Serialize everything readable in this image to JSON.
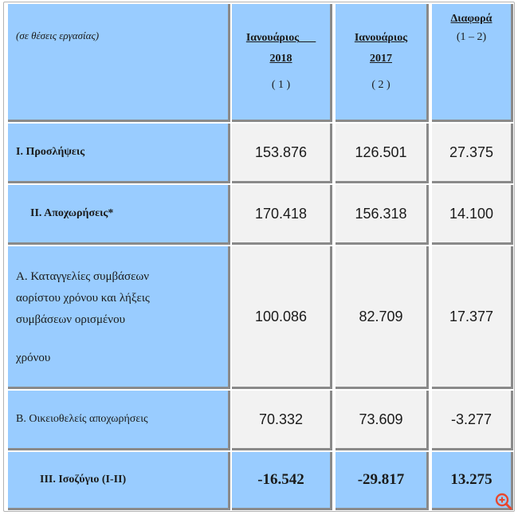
{
  "header": {
    "label": "(σε θέσεις εργασίας)",
    "col1": {
      "title": "Ιανουάριος___",
      "year": "2018",
      "num": "( 1 )"
    },
    "col2": {
      "title": "Ιανουάριος",
      "year": "2017",
      "num": "( 2 )"
    },
    "col3": {
      "title": "Διαφορά",
      "num": "(1 – 2)"
    }
  },
  "rows": [
    {
      "label": "Ι. Προσλήψεις",
      "v1": "153.876",
      "v2": "126.501",
      "v3": "27.375"
    },
    {
      "label": "ΙΙ. Αποχωρήσεις*",
      "v1": "170.418",
      "v2": "156.318",
      "v3": "14.100"
    },
    {
      "label_lines": [
        "Α. Καταγγελίες συμβάσεων",
        "αορίστου χρόνου  και λήξεις",
        "συμβάσεων ορισμένου",
        "χρόνου"
      ],
      "v1": "100.086",
      "v2": "82.709",
      "v3": "17.377"
    },
    {
      "label": "Β. Οικειοθελείς  αποχωρήσεις",
      "v1": "70.332",
      "v2": "73.609",
      "v3": "-3.277"
    },
    {
      "label": "ΙΙΙ. Ισοζύγιο (Ι-ΙΙ)",
      "v1": "-16.542",
      "v2": "-29.817",
      "v3": "13.275"
    }
  ],
  "colors": {
    "header_bg": "#99ccff",
    "cell_bg": "#f2f2f2",
    "icon": "#e8472e"
  },
  "icons": {
    "zoom": "zoom-in-icon"
  }
}
